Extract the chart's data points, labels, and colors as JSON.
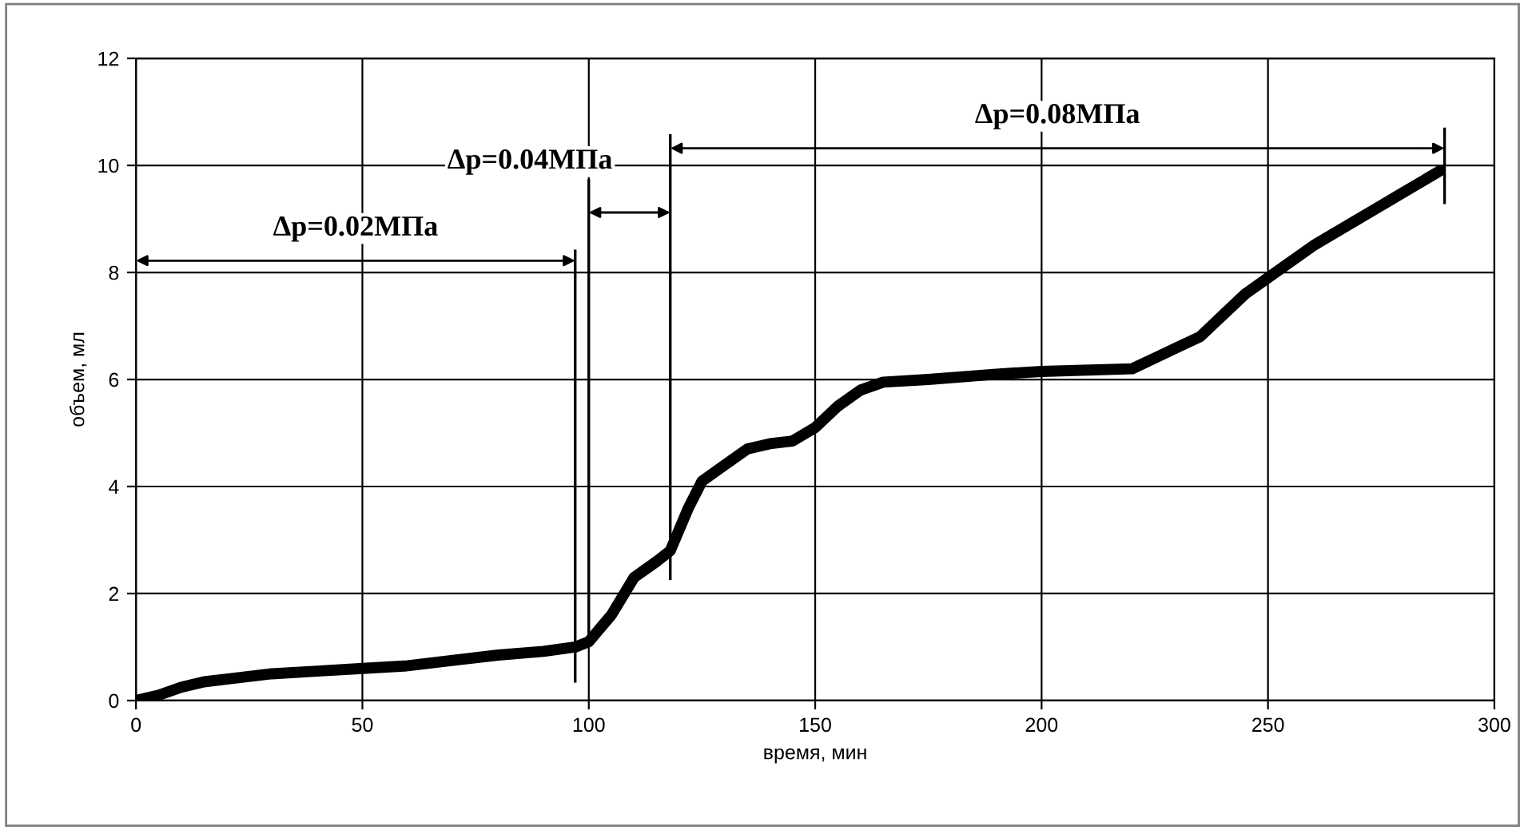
{
  "chart_data": {
    "type": "line",
    "xlabel": "время, мин",
    "ylabel": "объем, мл",
    "x": [
      0,
      5,
      10,
      15,
      20,
      30,
      40,
      50,
      60,
      70,
      80,
      90,
      97,
      100,
      105,
      110,
      115,
      118,
      122,
      125,
      130,
      135,
      140,
      145,
      150,
      155,
      160,
      165,
      175,
      190,
      200,
      220,
      225,
      230,
      235,
      240,
      245,
      250,
      260,
      270,
      280,
      288
    ],
    "series": [
      {
        "color": "#000000",
        "values": [
          0,
          0.1,
          0.25,
          0.35,
          0.4,
          0.5,
          0.55,
          0.6,
          0.65,
          0.75,
          0.85,
          0.92,
          1.0,
          1.1,
          1.6,
          2.3,
          2.6,
          2.8,
          3.6,
          4.1,
          4.4,
          4.7,
          4.8,
          4.85,
          5.1,
          5.5,
          5.8,
          5.95,
          6.0,
          6.1,
          6.15,
          6.2,
          6.4,
          6.6,
          6.8,
          7.2,
          7.6,
          7.9,
          8.5,
          9.0,
          9.5,
          9.9
        ]
      }
    ],
    "xlim": [
      0,
      300
    ],
    "ylim": [
      0,
      12
    ],
    "xticks": [
      0,
      50,
      100,
      150,
      200,
      250,
      300
    ],
    "yticks": [
      0,
      2,
      4,
      6,
      8,
      10,
      12
    ],
    "grid": true,
    "marker": "none",
    "line_style": "solid",
    "ref_lines": [
      {
        "axis": "x",
        "value": 97,
        "label": null,
        "color": "#000000"
      },
      {
        "axis": "x",
        "value": 100,
        "label": null,
        "color": "#000000"
      },
      {
        "axis": "x",
        "value": 118,
        "label": null,
        "color": "#000000"
      },
      {
        "axis": "x",
        "value": 289,
        "label": null,
        "color": "#000000"
      }
    ],
    "annotations": [
      "Δp=0.02МПа",
      "Δp=0.04МПа",
      "Δp=0.08МПа"
    ]
  }
}
